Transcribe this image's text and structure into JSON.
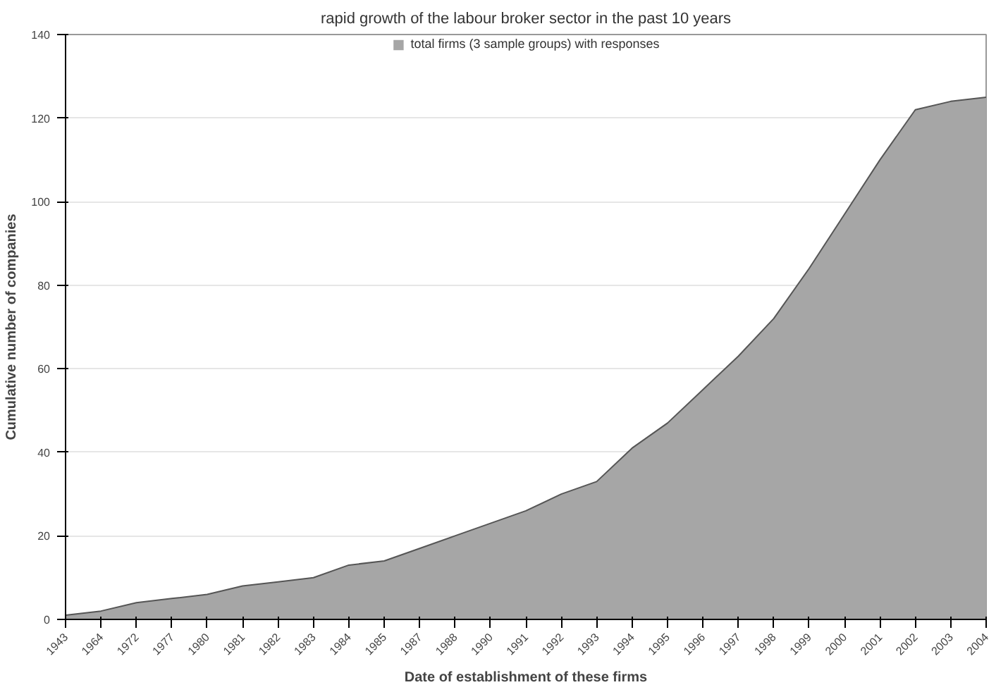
{
  "chart_data": {
    "type": "area",
    "title": "rapid growth of the labour broker sector in the past 10 years",
    "xlabel": "Date of establishment of these firms",
    "ylabel": "Cumulative number of companies",
    "categories": [
      "1943",
      "1964",
      "1972",
      "1977",
      "1980",
      "1981",
      "1982",
      "1983",
      "1984",
      "1985",
      "1987",
      "1988",
      "1990",
      "1991",
      "1992",
      "1993",
      "1994",
      "1995",
      "1996",
      "1997",
      "1998",
      "1999",
      "2000",
      "2001",
      "2002",
      "2003",
      "2004"
    ],
    "series": [
      {
        "name": "total firms (3 sample groups) with responses",
        "color": "#a6a6a6",
        "values": [
          1,
          2,
          4,
          5,
          6,
          8,
          9,
          10,
          13,
          14,
          17,
          20,
          23,
          26,
          30,
          33,
          41,
          47,
          55,
          63,
          72,
          84,
          97,
          110,
          122,
          124,
          125
        ]
      }
    ],
    "ylim": [
      0,
      140
    ],
    "yticks": [
      0,
      20,
      40,
      60,
      80,
      100,
      120,
      140
    ],
    "grid": "y",
    "legend": "top"
  }
}
